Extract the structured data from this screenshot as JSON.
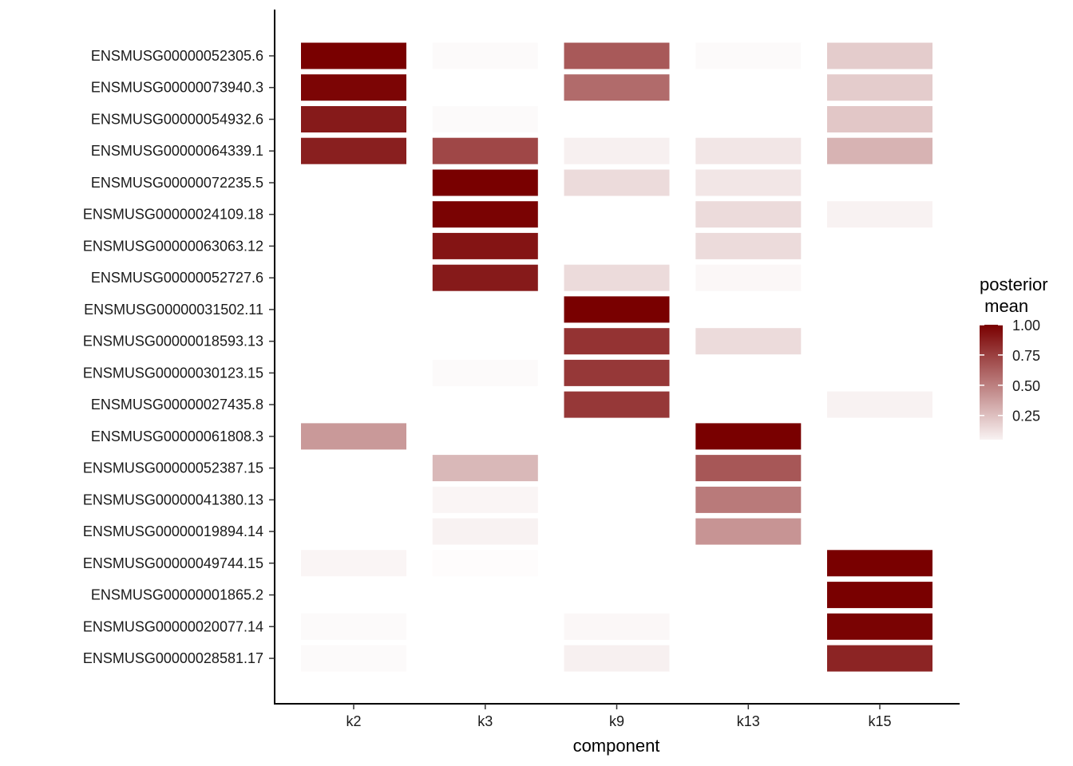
{
  "chart_data": {
    "type": "heatmap",
    "title": "",
    "xlabel": "component",
    "ylabel": "",
    "x_categories": [
      "k2",
      "k3",
      "k9",
      "k13",
      "k15"
    ],
    "y_categories": [
      "ENSMUSG00000052305.6",
      "ENSMUSG00000073940.3",
      "ENSMUSG00000054932.6",
      "ENSMUSG00000064339.1",
      "ENSMUSG00000072235.5",
      "ENSMUSG00000024109.18",
      "ENSMUSG00000063063.12",
      "ENSMUSG00000052727.6",
      "ENSMUSG00000031502.11",
      "ENSMUSG00000018593.13",
      "ENSMUSG00000030123.15",
      "ENSMUSG00000027435.8",
      "ENSMUSG00000061808.3",
      "ENSMUSG00000052387.15",
      "ENSMUSG00000041380.13",
      "ENSMUSG00000019894.14",
      "ENSMUSG00000049744.15",
      "ENSMUSG00000001865.2",
      "ENSMUSG00000020077.14",
      "ENSMUSG00000028581.17"
    ],
    "values": [
      [
        1.0,
        0.02,
        0.65,
        0.02,
        0.2
      ],
      [
        0.98,
        0.0,
        0.58,
        0.0,
        0.2
      ],
      [
        0.9,
        0.02,
        0.0,
        0.0,
        0.22
      ],
      [
        0.88,
        0.72,
        0.06,
        0.1,
        0.3
      ],
      [
        0.0,
        1.0,
        0.14,
        0.1,
        0.0
      ],
      [
        0.0,
        0.99,
        0.0,
        0.14,
        0.05
      ],
      [
        0.0,
        0.92,
        0.0,
        0.14,
        0.0
      ],
      [
        0.0,
        0.9,
        0.14,
        0.03,
        0.0
      ],
      [
        0.0,
        0.0,
        1.0,
        0.0,
        0.0
      ],
      [
        0.0,
        0.0,
        0.8,
        0.14,
        0.0
      ],
      [
        0.0,
        0.02,
        0.78,
        0.0,
        0.0
      ],
      [
        0.0,
        0.0,
        0.78,
        0.0,
        0.05
      ],
      [
        0.4,
        0.0,
        0.0,
        1.0,
        0.0
      ],
      [
        0.0,
        0.28,
        0.0,
        0.66,
        0.0
      ],
      [
        0.0,
        0.04,
        0.0,
        0.52,
        0.0
      ],
      [
        0.0,
        0.05,
        0.0,
        0.42,
        0.0
      ],
      [
        0.04,
        0.01,
        0.0,
        0.0,
        1.0
      ],
      [
        0.0,
        0.0,
        0.0,
        0.0,
        1.0
      ],
      [
        0.02,
        0.0,
        0.03,
        0.0,
        0.99
      ],
      [
        0.02,
        0.0,
        0.06,
        0.0,
        0.86
      ]
    ],
    "legend": {
      "title_lines": [
        "posterior",
        " mean"
      ],
      "ticks": [
        1.0,
        0.75,
        0.5,
        0.25
      ],
      "tick_labels": [
        "1.00",
        "0.75",
        "0.50",
        "0.25"
      ],
      "range": [
        0.05,
        1.0
      ],
      "low_color": "#ffffff",
      "high_color": "#790000",
      "placement": "right"
    },
    "grid": false
  }
}
